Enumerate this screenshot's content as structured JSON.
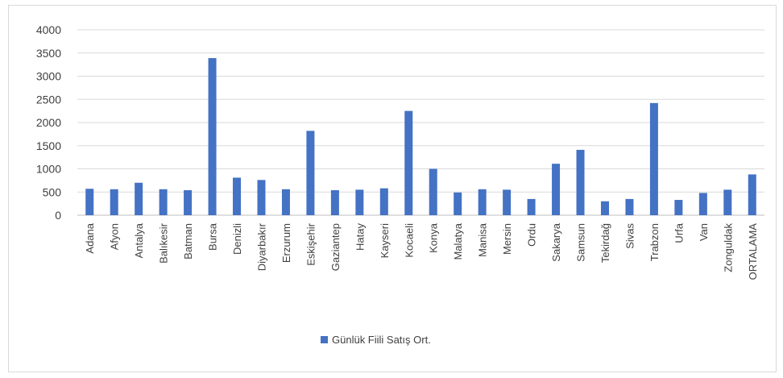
{
  "chart_data": {
    "type": "bar",
    "title": "",
    "xlabel": "",
    "ylabel": "",
    "ylim": [
      0,
      4000
    ],
    "yticks": [
      0,
      500,
      1000,
      1500,
      2000,
      2500,
      3000,
      3500,
      4000
    ],
    "grid": true,
    "legend_position": "bottom",
    "categories": [
      "Adana",
      "Afyon",
      "Antalya",
      "Balıkesir",
      "Batman",
      "Bursa",
      "Denizli",
      "Diyarbakır",
      "Erzurum",
      "Eskişehir",
      "Gaziantep",
      "Hatay",
      "Kayseri",
      "Kocaeli",
      "Konya",
      "Malatya",
      "Manisa",
      "Mersin",
      "Ordu",
      "Sakarya",
      "Samsun",
      "Tekirdağ",
      "Sivas",
      "Trabzon",
      "Urfa",
      "Van",
      "Zonguldak",
      "ORTALAMA"
    ],
    "series": [
      {
        "name": "Günlük Fiili Satış Ort.",
        "color": "#4472c4",
        "values": [
          570,
          560,
          700,
          560,
          540,
          3390,
          810,
          760,
          560,
          1820,
          540,
          550,
          580,
          2250,
          1000,
          490,
          560,
          550,
          350,
          1110,
          1410,
          300,
          350,
          2420,
          330,
          480,
          550,
          880
        ]
      }
    ]
  }
}
